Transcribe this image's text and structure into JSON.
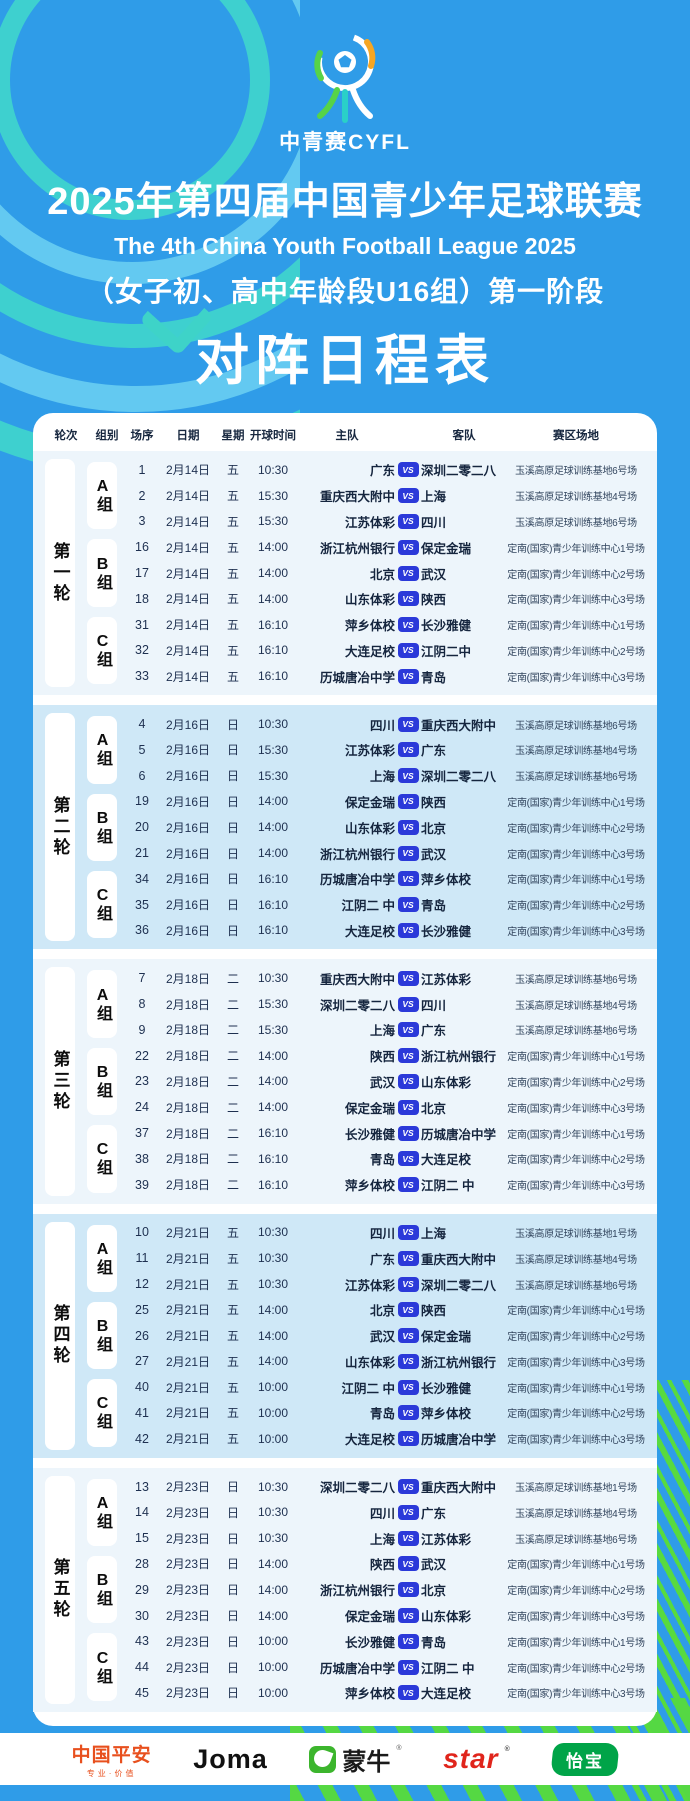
{
  "header": {
    "logo_text": "中青赛CYFL",
    "title": "2025年第四届中国青少年足球联赛",
    "subtitle_en": "The 4th China Youth Football League 2025",
    "subtitle_cn": "（女子初、高中年龄段U16组）第一阶段",
    "schedule_title": "对阵日程表"
  },
  "table": {
    "columns": [
      "轮次",
      "组别",
      "场序",
      "日期",
      "星期",
      "开球时间",
      "主队",
      "客队",
      "赛区场地"
    ],
    "vs_label": "VS",
    "rounds": [
      {
        "name": "第一轮",
        "groups": [
          {
            "name": "A组",
            "matches": [
              {
                "seq": "1",
                "date": "2月14日",
                "day": "五",
                "time": "10:30",
                "home": "广东",
                "away": "深圳二零二八",
                "venue": "玉溪高原足球训练基地6号场"
              },
              {
                "seq": "2",
                "date": "2月14日",
                "day": "五",
                "time": "15:30",
                "home": "重庆西大附中",
                "away": "上海",
                "venue": "玉溪高原足球训练基地4号场"
              },
              {
                "seq": "3",
                "date": "2月14日",
                "day": "五",
                "time": "15:30",
                "home": "江苏体彩",
                "away": "四川",
                "venue": "玉溪高原足球训练基地6号场"
              }
            ]
          },
          {
            "name": "B组",
            "matches": [
              {
                "seq": "16",
                "date": "2月14日",
                "day": "五",
                "time": "14:00",
                "home": "浙江杭州银行",
                "away": "保定金瑞",
                "venue": "定南(国家)青少年训练中心1号场"
              },
              {
                "seq": "17",
                "date": "2月14日",
                "day": "五",
                "time": "14:00",
                "home": "北京",
                "away": "武汉",
                "venue": "定南(国家)青少年训练中心2号场"
              },
              {
                "seq": "18",
                "date": "2月14日",
                "day": "五",
                "time": "14:00",
                "home": "山东体彩",
                "away": "陕西",
                "venue": "定南(国家)青少年训练中心3号场"
              }
            ]
          },
          {
            "name": "C组",
            "matches": [
              {
                "seq": "31",
                "date": "2月14日",
                "day": "五",
                "time": "16:10",
                "home": "萍乡体校",
                "away": "长沙雅健",
                "venue": "定南(国家)青少年训练中心1号场"
              },
              {
                "seq": "32",
                "date": "2月14日",
                "day": "五",
                "time": "16:10",
                "home": "大连足校",
                "away": "江阴二中",
                "venue": "定南(国家)青少年训练中心2号场"
              },
              {
                "seq": "33",
                "date": "2月14日",
                "day": "五",
                "time": "16:10",
                "home": "历城唐冶中学",
                "away": "青岛",
                "venue": "定南(国家)青少年训练中心3号场"
              }
            ]
          }
        ]
      },
      {
        "name": "第二轮",
        "groups": [
          {
            "name": "A组",
            "matches": [
              {
                "seq": "4",
                "date": "2月16日",
                "day": "日",
                "time": "10:30",
                "home": "四川",
                "away": "重庆西大附中",
                "venue": "玉溪高原足球训练基地6号场"
              },
              {
                "seq": "5",
                "date": "2月16日",
                "day": "日",
                "time": "15:30",
                "home": "江苏体彩",
                "away": "广东",
                "venue": "玉溪高原足球训练基地4号场"
              },
              {
                "seq": "6",
                "date": "2月16日",
                "day": "日",
                "time": "15:30",
                "home": "上海",
                "away": "深圳二零二八",
                "venue": "玉溪高原足球训练基地6号场"
              }
            ]
          },
          {
            "name": "B组",
            "matches": [
              {
                "seq": "19",
                "date": "2月16日",
                "day": "日",
                "time": "14:00",
                "home": "保定金瑞",
                "away": "陕西",
                "venue": "定南(国家)青少年训练中心1号场"
              },
              {
                "seq": "20",
                "date": "2月16日",
                "day": "日",
                "time": "14:00",
                "home": "山东体彩",
                "away": "北京",
                "venue": "定南(国家)青少年训练中心2号场"
              },
              {
                "seq": "21",
                "date": "2月16日",
                "day": "日",
                "time": "14:00",
                "home": "浙江杭州银行",
                "away": "武汉",
                "venue": "定南(国家)青少年训练中心3号场"
              }
            ]
          },
          {
            "name": "C组",
            "matches": [
              {
                "seq": "34",
                "date": "2月16日",
                "day": "日",
                "time": "16:10",
                "home": "历城唐冶中学",
                "away": "萍乡体校",
                "venue": "定南(国家)青少年训练中心1号场"
              },
              {
                "seq": "35",
                "date": "2月16日",
                "day": "日",
                "time": "16:10",
                "home": "江阴二 中",
                "away": "青岛",
                "venue": "定南(国家)青少年训练中心2号场"
              },
              {
                "seq": "36",
                "date": "2月16日",
                "day": "日",
                "time": "16:10",
                "home": "大连足校",
                "away": "长沙雅健",
                "venue": "定南(国家)青少年训练中心3号场"
              }
            ]
          }
        ]
      },
      {
        "name": "第三轮",
        "groups": [
          {
            "name": "A组",
            "matches": [
              {
                "seq": "7",
                "date": "2月18日",
                "day": "二",
                "time": "10:30",
                "home": "重庆西大附中",
                "away": "江苏体彩",
                "venue": "玉溪高原足球训练基地6号场"
              },
              {
                "seq": "8",
                "date": "2月18日",
                "day": "二",
                "time": "15:30",
                "home": "深圳二零二八",
                "away": "四川",
                "venue": "玉溪高原足球训练基地4号场"
              },
              {
                "seq": "9",
                "date": "2月18日",
                "day": "二",
                "time": "15:30",
                "home": "上海",
                "away": "广东",
                "venue": "玉溪高原足球训练基地6号场"
              }
            ]
          },
          {
            "name": "B组",
            "matches": [
              {
                "seq": "22",
                "date": "2月18日",
                "day": "二",
                "time": "14:00",
                "home": "陕西",
                "away": "浙江杭州银行",
                "venue": "定南(国家)青少年训练中心1号场"
              },
              {
                "seq": "23",
                "date": "2月18日",
                "day": "二",
                "time": "14:00",
                "home": "武汉",
                "away": "山东体彩",
                "venue": "定南(国家)青少年训练中心2号场"
              },
              {
                "seq": "24",
                "date": "2月18日",
                "day": "二",
                "time": "14:00",
                "home": "保定金瑞",
                "away": "北京",
                "venue": "定南(国家)青少年训练中心3号场"
              }
            ]
          },
          {
            "name": "C组",
            "matches": [
              {
                "seq": "37",
                "date": "2月18日",
                "day": "二",
                "time": "16:10",
                "home": "长沙雅健",
                "away": "历城唐冶中学",
                "venue": "定南(国家)青少年训练中心1号场"
              },
              {
                "seq": "38",
                "date": "2月18日",
                "day": "二",
                "time": "16:10",
                "home": "青岛",
                "away": "大连足校",
                "venue": "定南(国家)青少年训练中心2号场"
              },
              {
                "seq": "39",
                "date": "2月18日",
                "day": "二",
                "time": "16:10",
                "home": "萍乡体校",
                "away": "江阴二 中",
                "venue": "定南(国家)青少年训练中心3号场"
              }
            ]
          }
        ]
      },
      {
        "name": "第四轮",
        "groups": [
          {
            "name": "A组",
            "matches": [
              {
                "seq": "10",
                "date": "2月21日",
                "day": "五",
                "time": "10:30",
                "home": "四川",
                "away": "上海",
                "venue": "玉溪高原足球训练基地1号场"
              },
              {
                "seq": "11",
                "date": "2月21日",
                "day": "五",
                "time": "10:30",
                "home": "广东",
                "away": "重庆西大附中",
                "venue": "玉溪高原足球训练基地4号场"
              },
              {
                "seq": "12",
                "date": "2月21日",
                "day": "五",
                "time": "10:30",
                "home": "江苏体彩",
                "away": "深圳二零二八",
                "venue": "玉溪高原足球训练基地6号场"
              }
            ]
          },
          {
            "name": "B组",
            "matches": [
              {
                "seq": "25",
                "date": "2月21日",
                "day": "五",
                "time": "14:00",
                "home": "北京",
                "away": "陕西",
                "venue": "定南(国家)青少年训练中心1号场"
              },
              {
                "seq": "26",
                "date": "2月21日",
                "day": "五",
                "time": "14:00",
                "home": "武汉",
                "away": "保定金瑞",
                "venue": "定南(国家)青少年训练中心2号场"
              },
              {
                "seq": "27",
                "date": "2月21日",
                "day": "五",
                "time": "14:00",
                "home": "山东体彩",
                "away": "浙江杭州银行",
                "venue": "定南(国家)青少年训练中心3号场"
              }
            ]
          },
          {
            "name": "C组",
            "matches": [
              {
                "seq": "40",
                "date": "2月21日",
                "day": "五",
                "time": "10:00",
                "home": "江阴二 中",
                "away": "长沙雅健",
                "venue": "定南(国家)青少年训练中心1号场"
              },
              {
                "seq": "41",
                "date": "2月21日",
                "day": "五",
                "time": "10:00",
                "home": "青岛",
                "away": "萍乡体校",
                "venue": "定南(国家)青少年训练中心2号场"
              },
              {
                "seq": "42",
                "date": "2月21日",
                "day": "五",
                "time": "10:00",
                "home": "大连足校",
                "away": "历城唐冶中学",
                "venue": "定南(国家)青少年训练中心3号场"
              }
            ]
          }
        ]
      },
      {
        "name": "第五轮",
        "groups": [
          {
            "name": "A组",
            "matches": [
              {
                "seq": "13",
                "date": "2月23日",
                "day": "日",
                "time": "10:30",
                "home": "深圳二零二八",
                "away": "重庆西大附中",
                "venue": "玉溪高原足球训练基地1号场"
              },
              {
                "seq": "14",
                "date": "2月23日",
                "day": "日",
                "time": "10:30",
                "home": "四川",
                "away": "广东",
                "venue": "玉溪高原足球训练基地4号场"
              },
              {
                "seq": "15",
                "date": "2月23日",
                "day": "日",
                "time": "10:30",
                "home": "上海",
                "away": "江苏体彩",
                "venue": "玉溪高原足球训练基地6号场"
              }
            ]
          },
          {
            "name": "B组",
            "matches": [
              {
                "seq": "28",
                "date": "2月23日",
                "day": "日",
                "time": "14:00",
                "home": "陕西",
                "away": "武汉",
                "venue": "定南(国家)青少年训练中心1号场"
              },
              {
                "seq": "29",
                "date": "2月23日",
                "day": "日",
                "time": "14:00",
                "home": "浙江杭州银行",
                "away": "北京",
                "venue": "定南(国家)青少年训练中心2号场"
              },
              {
                "seq": "30",
                "date": "2月23日",
                "day": "日",
                "time": "14:00",
                "home": "保定金瑞",
                "away": "山东体彩",
                "venue": "定南(国家)青少年训练中心3号场"
              }
            ]
          },
          {
            "name": "C组",
            "matches": [
              {
                "seq": "43",
                "date": "2月23日",
                "day": "日",
                "time": "10:00",
                "home": "长沙雅健",
                "away": "青岛",
                "venue": "定南(国家)青少年训练中心1号场"
              },
              {
                "seq": "44",
                "date": "2月23日",
                "day": "日",
                "time": "10:00",
                "home": "历城唐冶中学",
                "away": "江阴二 中",
                "venue": "定南(国家)青少年训练中心2号场"
              },
              {
                "seq": "45",
                "date": "2月23日",
                "day": "日",
                "time": "10:00",
                "home": "萍乡体校",
                "away": "大连足校",
                "venue": "定南(国家)青少年训练中心3号场"
              }
            ]
          }
        ]
      }
    ]
  },
  "sponsors": [
    {
      "name": "中国平安",
      "tagline": "专业·价值"
    },
    {
      "name": "Joma"
    },
    {
      "name": "蒙牛"
    },
    {
      "name": "star"
    },
    {
      "name": "怡宝"
    }
  ],
  "colors": {
    "background": "#2f9ce8",
    "accent_green": "#55d843",
    "accent_teal": "#3ed0cf",
    "vs_badge": "#2b39d9",
    "section": "#edf5fb",
    "section_alt": "#cfe8f7"
  }
}
